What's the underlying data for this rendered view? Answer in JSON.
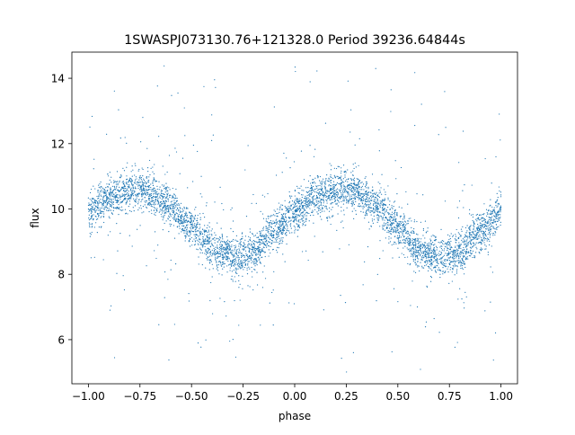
{
  "chart_data": {
    "type": "scatter",
    "title": "1SWASPJ073130.76+121328.0 Period 39236.64844s",
    "xlabel": "phase",
    "ylabel": "flux",
    "xlim": [
      -1.08,
      1.08
    ],
    "ylim": [
      4.65,
      14.8
    ],
    "x_ticks": [
      -1.0,
      -0.75,
      -0.5,
      -0.25,
      0.0,
      0.25,
      0.5,
      0.75,
      1.0
    ],
    "x_tick_labels": [
      "−1.00",
      "−0.75",
      "−0.50",
      "−0.25",
      "0.00",
      "0.25",
      "0.50",
      "0.75",
      "1.00"
    ],
    "y_ticks": [
      6,
      8,
      10,
      12,
      14
    ],
    "y_tick_labels": [
      "6",
      "8",
      "10",
      "12",
      "14"
    ],
    "grid": false,
    "legend": "none",
    "point_color": "#1f77b4",
    "series": [
      {
        "phase": [
          -1.0,
          -0.9,
          -0.8,
          -0.75,
          -0.7,
          -0.6,
          -0.5,
          -0.4,
          -0.3,
          -0.25,
          -0.2,
          -0.1,
          0.0,
          0.1,
          0.2,
          0.25,
          0.3,
          0.4,
          0.5,
          0.6,
          0.7,
          0.75,
          0.8,
          0.9,
          1.0
        ],
        "flux_trend": [
          9.9,
          10.35,
          10.55,
          10.6,
          10.5,
          10.1,
          9.4,
          8.8,
          8.55,
          8.55,
          8.7,
          9.3,
          9.9,
          10.35,
          10.55,
          10.6,
          10.5,
          10.1,
          9.4,
          8.8,
          8.55,
          8.55,
          8.7,
          9.3,
          9.9
        ],
        "scatter_sigma": 0.3
      }
    ]
  }
}
